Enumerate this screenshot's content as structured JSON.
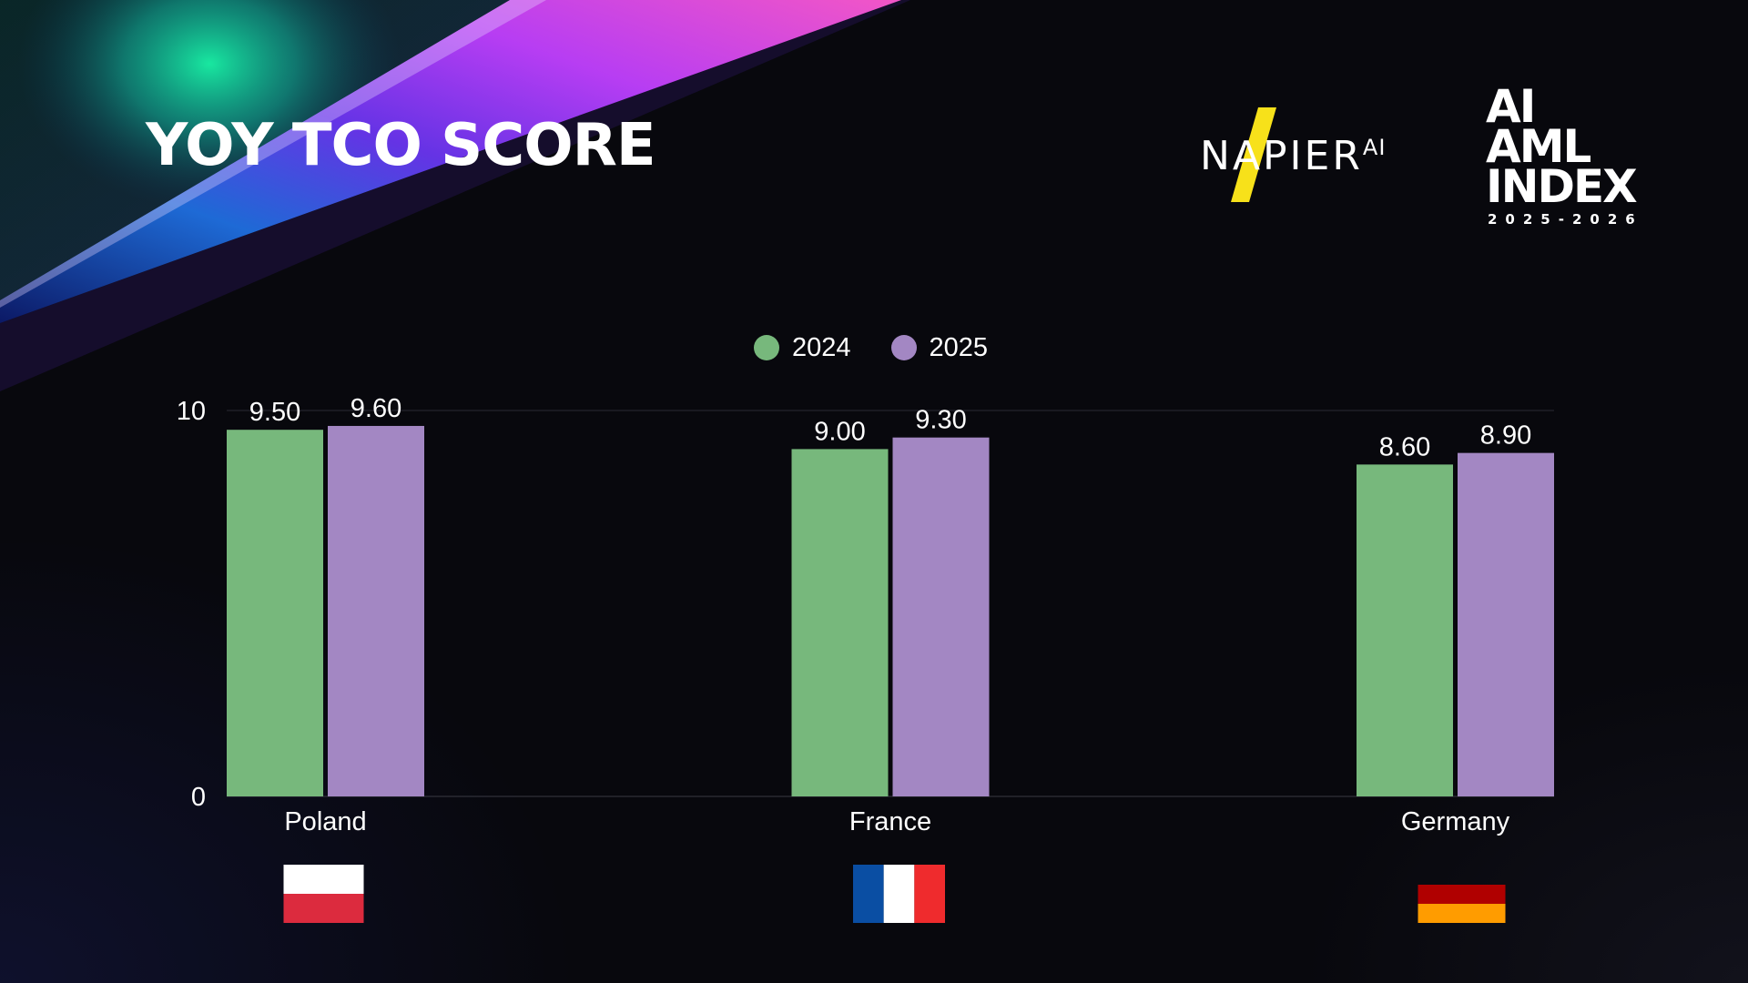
{
  "slide": {
    "title": "YOY TCO SCORE"
  },
  "logos": {
    "napier": {
      "text": "NAPIER",
      "superscript": "AI",
      "accent_color": "#f7e11a"
    },
    "index": {
      "line1": "AI",
      "line2": "AML",
      "line3": "INDEX",
      "years": "2025-2026"
    }
  },
  "colors": {
    "series_2024": "#77b87c",
    "series_2025": "#a387c3",
    "background": "#08080d"
  },
  "chart_data": {
    "type": "bar",
    "title": "YOY TCO SCORE",
    "xlabel": "",
    "ylabel": "",
    "categories": [
      "Poland",
      "France",
      "Germany"
    ],
    "series": [
      {
        "name": "2024",
        "values": [
          9.5,
          9.0,
          8.6
        ],
        "labels": [
          "9.50",
          "9.00",
          "8.60"
        ]
      },
      {
        "name": "2025",
        "values": [
          9.6,
          9.3,
          8.9
        ],
        "labels": [
          "9.60",
          "9.30",
          "8.90"
        ]
      }
    ],
    "ylim": [
      0,
      10
    ],
    "yticks": [
      "0",
      "10"
    ],
    "grid": true,
    "legend_position": "top-center",
    "category_flags": [
      "poland-flag",
      "france-flag",
      "germany-flag"
    ]
  }
}
